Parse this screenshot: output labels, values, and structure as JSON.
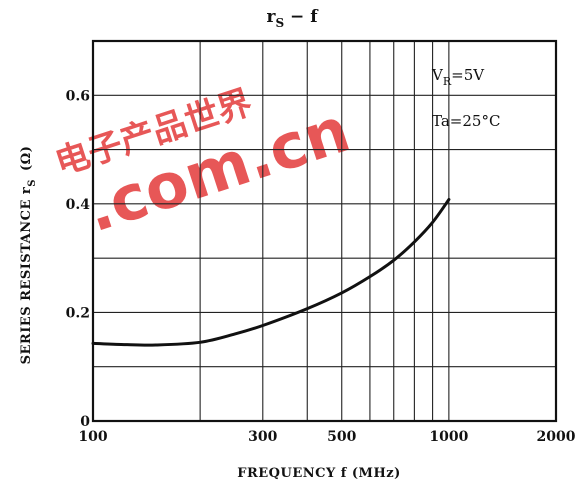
{
  "chart_data": {
    "type": "line",
    "title": "rS − f",
    "title_main": "r",
    "title_sub": "S",
    "title_rest": " − f",
    "xlabel": "FREQUENCY  f  (MHz)",
    "ylabel": "SERIES RESISTANCE  r",
    "ylabel_sub": "S",
    "ylabel_unit": "(Ω)",
    "x_scale": "log",
    "xlim": [
      100,
      2000
    ],
    "ylim": [
      0,
      0.7
    ],
    "x_ticks": [
      100,
      300,
      500,
      1000,
      2000
    ],
    "x_tick_labels": [
      "100",
      "300",
      "500",
      "1000",
      "2000"
    ],
    "y_ticks": [
      0,
      0.2,
      0.4,
      0.6
    ],
    "y_tick_labels": [
      "0",
      "0.2",
      "0.4",
      "0.6"
    ],
    "x_grid": [
      100,
      200,
      300,
      400,
      500,
      600,
      700,
      800,
      900,
      1000,
      2000
    ],
    "y_grid": [
      0.1,
      0.2,
      0.3,
      0.4,
      0.5,
      0.6
    ],
    "grid": true,
    "series": [
      {
        "x": [
          100,
          120,
          150,
          200,
          250,
          300,
          400,
          500,
          600,
          700,
          800,
          900,
          1000
        ],
        "y": [
          0.143,
          0.141,
          0.14,
          0.145,
          0.16,
          0.176,
          0.207,
          0.236,
          0.266,
          0.296,
          0.33,
          0.366,
          0.408
        ]
      }
    ],
    "annotations": [
      {
        "main": "V",
        "sub": "R",
        "rest": "=5V"
      },
      {
        "main": "Ta=25°C",
        "sub": "",
        "rest": ""
      }
    ]
  },
  "watermark": {
    "line1": "电子产品世界",
    "line2": ".com.cn",
    "color": "#e02020"
  }
}
